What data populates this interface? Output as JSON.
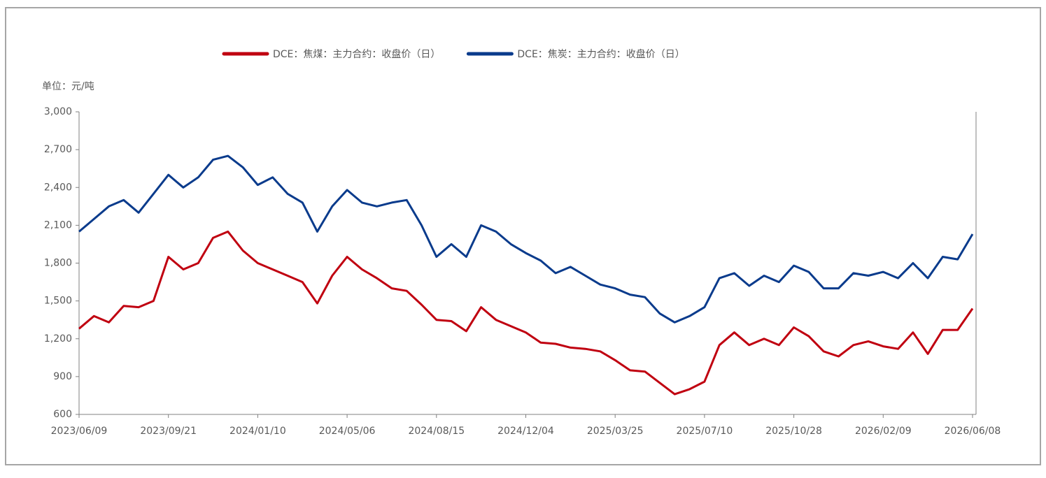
{
  "chart_data": {
    "type": "line",
    "unit_label": "单位：元/吨",
    "x": [
      "2023/06/09",
      "2023/06/26",
      "2023/07/13",
      "2023/07/30",
      "2023/08/17",
      "2023/09/03",
      "2023/09/21",
      "2023/10/09",
      "2023/10/28",
      "2023/11/15",
      "2023/12/04",
      "2023/12/22",
      "2024/01/10",
      "2024/01/29",
      "2024/02/18",
      "2024/03/08",
      "2024/03/28",
      "2024/04/16",
      "2024/05/06",
      "2024/05/23",
      "2024/06/09",
      "2024/06/26",
      "2024/07/13",
      "2024/07/30",
      "2024/08/15",
      "2024/09/02",
      "2024/09/21",
      "2024/10/09",
      "2024/10/27",
      "2024/11/15",
      "2024/12/04",
      "2024/12/22",
      "2025/01/10",
      "2025/01/29",
      "2025/02/16",
      "2025/03/07",
      "2025/03/25",
      "2025/04/11",
      "2025/04/29",
      "2025/05/17",
      "2025/06/04",
      "2025/06/22",
      "2025/07/10",
      "2025/07/28",
      "2025/08/16",
      "2025/09/03",
      "2025/09/21",
      "2025/10/10",
      "2025/10/28",
      "2025/11/14",
      "2025/12/01",
      "2025/12/19",
      "2026/01/05",
      "2026/01/22",
      "2026/02/09",
      "2026/02/28",
      "2026/03/19",
      "2026/04/08",
      "2026/04/28",
      "2026/05/18",
      "2026/06/08"
    ],
    "xticks": [
      "2023/06/09",
      "2023/09/21",
      "2024/01/10",
      "2024/05/06",
      "2024/08/15",
      "2024/12/04",
      "2025/03/25",
      "2025/07/10",
      "2025/10/28",
      "2026/02/09",
      "2026/06/08"
    ],
    "ylim": [
      600,
      3000
    ],
    "yticks": [
      600,
      900,
      {
        "value": 1200,
        "label": "1,200"
      },
      {
        "value": 1500,
        "label": "1,500"
      },
      {
        "value": 1800,
        "label": "1,800"
      },
      {
        "value": 2100,
        "label": "2,100"
      },
      {
        "value": 2400,
        "label": "2,400"
      },
      {
        "value": 2700,
        "label": "2,700"
      },
      {
        "value": 3000,
        "label": "3,000"
      }
    ],
    "legend": "top",
    "series": [
      {
        "name": "DCE：焦煤：主力合约：收盘价（日）",
        "color": "#c00010",
        "values": [
          1280,
          1380,
          1330,
          1460,
          1450,
          1500,
          1850,
          1750,
          1800,
          2000,
          2050,
          1900,
          1800,
          1750,
          1700,
          1650,
          1480,
          1700,
          1850,
          1750,
          1680,
          1600,
          1580,
          1470,
          1350,
          1340,
          1260,
          1450,
          1350,
          1300,
          1250,
          1170,
          1160,
          1130,
          1120,
          1100,
          1030,
          950,
          940,
          850,
          760,
          800,
          860,
          1150,
          1250,
          1150,
          1200,
          1150,
          1290,
          1220,
          1100,
          1060,
          1150,
          1180,
          1140,
          1120,
          1250,
          1080,
          1270,
          1270,
          1440
        ]
      },
      {
        "name": "DCE：焦炭：主力合约：收盘价（日）",
        "color": "#0a3b8c",
        "values": [
          2050,
          2150,
          2250,
          2300,
          2200,
          2350,
          2500,
          2400,
          2480,
          2620,
          2650,
          2560,
          2420,
          2480,
          2350,
          2280,
          2050,
          2250,
          2380,
          2280,
          2250,
          2280,
          2300,
          2100,
          1850,
          1950,
          1850,
          2100,
          2050,
          1950,
          1880,
          1820,
          1720,
          1770,
          1700,
          1630,
          1600,
          1550,
          1530,
          1400,
          1330,
          1380,
          1450,
          1680,
          1720,
          1620,
          1700,
          1650,
          1780,
          1730,
          1600,
          1600,
          1720,
          1700,
          1730,
          1680,
          1800,
          1680,
          1850,
          1830,
          2030
        ]
      }
    ]
  }
}
